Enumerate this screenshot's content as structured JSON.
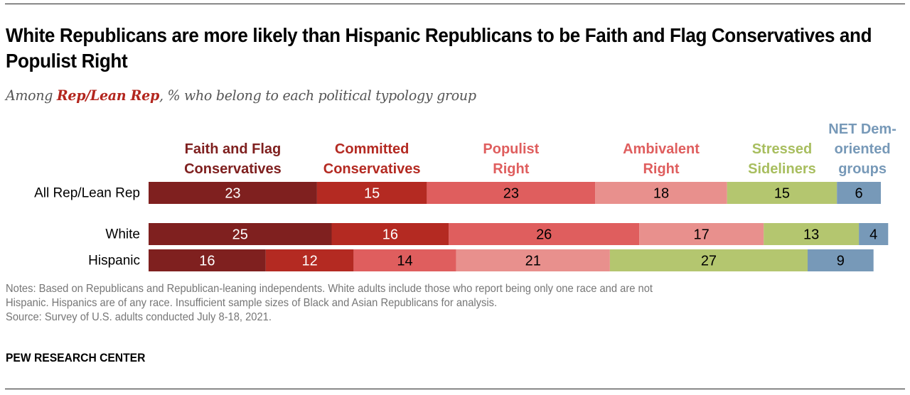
{
  "title": "White Republicans are more likely than Hispanic Republicans to be Faith and Flag Conservatives and Populist Right",
  "subtitle": {
    "prefix": "Among ",
    "highlight": "Rep/Lean Rep",
    "suffix": ", % who belong to each political typology group"
  },
  "chart_data": {
    "type": "bar",
    "orientation": "horizontal",
    "stacked": true,
    "title": "White Republicans are more likely than Hispanic Republicans to be Faith and Flag Conservatives and Populist Right",
    "subtitle": "Among Rep/Lean Rep, % who belong to each political typology group",
    "xlabel": "",
    "ylabel": "",
    "xlim": [
      0,
      100
    ],
    "grid": false,
    "legend": "top",
    "categories": [
      "All Rep/Lean Rep",
      "White",
      "Hispanic"
    ],
    "series": [
      {
        "name": "Faith and Flag Conservatives",
        "label_lines": [
          "Faith and Flag",
          "Conservatives"
        ],
        "color": "#7f201f",
        "text_color": "#ffffff",
        "label_color": "#7f201f",
        "values": [
          23,
          25,
          16
        ]
      },
      {
        "name": "Committed Conservatives",
        "label_lines": [
          "Committed",
          "Conservatives"
        ],
        "color": "#b42a22",
        "text_color": "#ffffff",
        "label_color": "#b42a22",
        "values": [
          15,
          16,
          12
        ]
      },
      {
        "name": "Populist Right",
        "label_lines": [
          "Populist",
          "Right"
        ],
        "color": "#df5e5e",
        "text_color": "#000000",
        "label_color": "#df5e5e",
        "values": [
          23,
          26,
          14
        ]
      },
      {
        "name": "Ambivalent Right",
        "label_lines": [
          "Ambivalent",
          "Right"
        ],
        "color": "#e8908d",
        "text_color": "#000000",
        "label_color": "#df5e5e",
        "values": [
          18,
          17,
          21
        ]
      },
      {
        "name": "Stressed Sideliners",
        "label_lines": [
          "Stressed",
          "Sideliners"
        ],
        "color": "#b4c66f",
        "text_color": "#000000",
        "label_color": "#a8be5f",
        "values": [
          15,
          13,
          27
        ]
      },
      {
        "name": "NET Dem-oriented groups",
        "label_lines": [
          "NET Dem-",
          "oriented",
          "groups"
        ],
        "color": "#7799b8",
        "text_color": "#000000",
        "label_color": "#7799b8",
        "values": [
          6,
          4,
          9
        ]
      }
    ]
  },
  "notes": [
    "Notes: Based on Republicans and Republican-leaning independents. White adults include those who report being only one race and are not",
    "Hispanic. Hispanics are of any race. Insufficient sample sizes of Black and Asian Republicans for analysis.",
    "Source: Survey of U.S. adults conducted July 8-18, 2021."
  ],
  "footer": "PEW RESEARCH CENTER"
}
